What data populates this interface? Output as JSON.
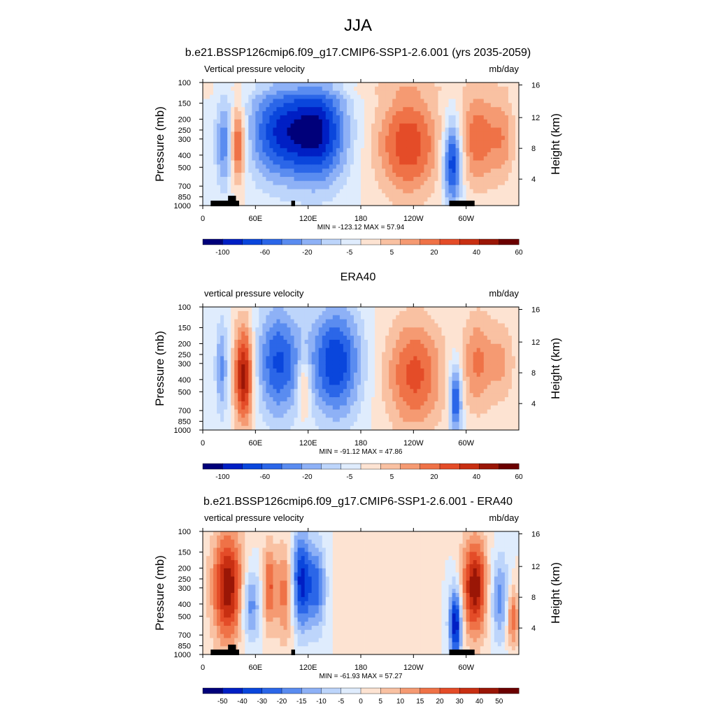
{
  "figure": {
    "title": "JJA"
  },
  "colors": {
    "panel_scale": [
      "#00007a",
      "#001fc4",
      "#0a46dc",
      "#2b66e8",
      "#5a8cf0",
      "#8eb1f6",
      "#bdd5fb",
      "#dfecfd",
      "#fde3d2",
      "#f9c1a2",
      "#f59a72",
      "#ef7247",
      "#e44c28",
      "#c82f12",
      "#9a1606",
      "#6b0000"
    ],
    "diff_scale": [
      "#00007a",
      "#001fc4",
      "#0a46dc",
      "#2b66e8",
      "#5a8cf0",
      "#8eb1f6",
      "#bdd5fb",
      "#dfecfd",
      "#fde3d2",
      "#f9c1a2",
      "#f59a72",
      "#ef7247",
      "#e44c28",
      "#c82f12",
      "#9a1606",
      "#6b0000"
    ]
  },
  "chart_data": [
    {
      "type": "heatmap",
      "title": "b.e21.BSSP126cmip6.f09_g17.CMIP6-SSP1-2.6.001 (yrs 2035-2059)",
      "left_label": "Vertical pressure velocity",
      "right_label": "mb/day",
      "ylabel": "Pressure (mb)",
      "y2label": "Height (km)",
      "x_ticks": [
        "0",
        "60E",
        "120E",
        "180",
        "120W",
        "60W"
      ],
      "y_ticks": [
        "100",
        "150",
        "200",
        "250",
        "300",
        "400",
        "500",
        "700",
        "850",
        "1000"
      ],
      "y2_ticks": [
        "4",
        "8",
        "12",
        "16"
      ],
      "stats": "MIN = -123.12  MAX =  57.94",
      "colorbar_labels": [
        "-100",
        "-60",
        "-20",
        "-5",
        "5",
        "20",
        "40",
        "60"
      ],
      "topography": true
    },
    {
      "type": "heatmap",
      "title": "ERA40",
      "left_label": "vertical pressure velocity",
      "right_label": "mb/day",
      "ylabel": "Pressure (mb)",
      "y2label": "Height (km)",
      "x_ticks": [
        "0",
        "60E",
        "120E",
        "180",
        "120W",
        "60W"
      ],
      "y_ticks": [
        "100",
        "150",
        "200",
        "250",
        "300",
        "400",
        "500",
        "700",
        "850",
        "1000"
      ],
      "y2_ticks": [
        "4",
        "8",
        "12",
        "16"
      ],
      "stats": "MIN = -91.12  MAX =  47.86",
      "colorbar_labels": [
        "-100",
        "-60",
        "-20",
        "-5",
        "5",
        "20",
        "40",
        "60"
      ],
      "topography": false
    },
    {
      "type": "heatmap",
      "title": "b.e21.BSSP126cmip6.f09_g17.CMIP6-SSP1-2.6.001 - ERA40",
      "left_label": "vertical pressure velocity",
      "right_label": "mb/day",
      "ylabel": "Pressure (mb)",
      "y2label": "Height (km)",
      "x_ticks": [
        "0",
        "60E",
        "120E",
        "180",
        "120W",
        "60W"
      ],
      "y_ticks": [
        "100",
        "150",
        "200",
        "250",
        "300",
        "400",
        "500",
        "700",
        "850",
        "1000"
      ],
      "y2_ticks": [
        "4",
        "8",
        "12",
        "16"
      ],
      "stats": "MIN = -61.93  MAX =  57.27",
      "colorbar_labels": [
        "-50",
        "-40",
        "-30",
        "-20",
        "-15",
        "-10",
        "-5",
        "0",
        "5",
        "10",
        "15",
        "20",
        "30",
        "40",
        "50"
      ],
      "topography": true
    }
  ]
}
